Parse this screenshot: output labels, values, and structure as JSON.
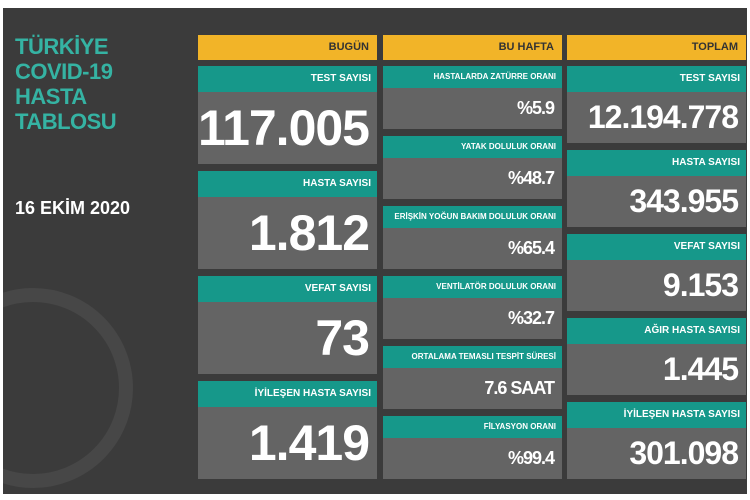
{
  "panel": {
    "title_lines": [
      "TÜRKİYE",
      "COVID-19",
      "HASTA",
      "TABLOSU"
    ],
    "date": "16 EKİM 2020"
  },
  "columns": [
    {
      "header": "BUGÜN",
      "items": [
        {
          "label": "TEST SAYISI",
          "value": "117.005"
        },
        {
          "label": "HASTA SAYISI",
          "value": "1.812"
        },
        {
          "label": "VEFAT SAYISI",
          "value": "73"
        },
        {
          "label": "İYİLEŞEN HASTA SAYISI",
          "value": "1.419"
        }
      ]
    },
    {
      "header": "BU HAFTA",
      "items": [
        {
          "label": "HASTALARDA ZATÜRRE ORANI",
          "value": "%5.9"
        },
        {
          "label": "YATAK DOLULUK ORANI",
          "value": "%48.7"
        },
        {
          "label": "ERİŞKİN YOĞUN BAKIM DOLULUK ORANI",
          "value": "%65.4"
        },
        {
          "label": "VENTİLATÖR DOLULUK ORANI",
          "value": "%32.7"
        },
        {
          "label": "ORTALAMA TEMASLI TESPİT SÜRESİ",
          "value": "7.6 SAAT"
        },
        {
          "label": "FİLYASYON ORANI",
          "value": "%99.4"
        }
      ]
    },
    {
      "header": "TOPLAM",
      "items": [
        {
          "label": "TEST SAYISI",
          "value": "12.194.778"
        },
        {
          "label": "HASTA SAYISI",
          "value": "343.955"
        },
        {
          "label": "VEFAT SAYISI",
          "value": "9.153"
        },
        {
          "label": "AĞIR HASTA SAYISI",
          "value": "1.445"
        },
        {
          "label": "İYİLEŞEN HASTA SAYISI",
          "value": "301.098"
        }
      ]
    }
  ]
}
